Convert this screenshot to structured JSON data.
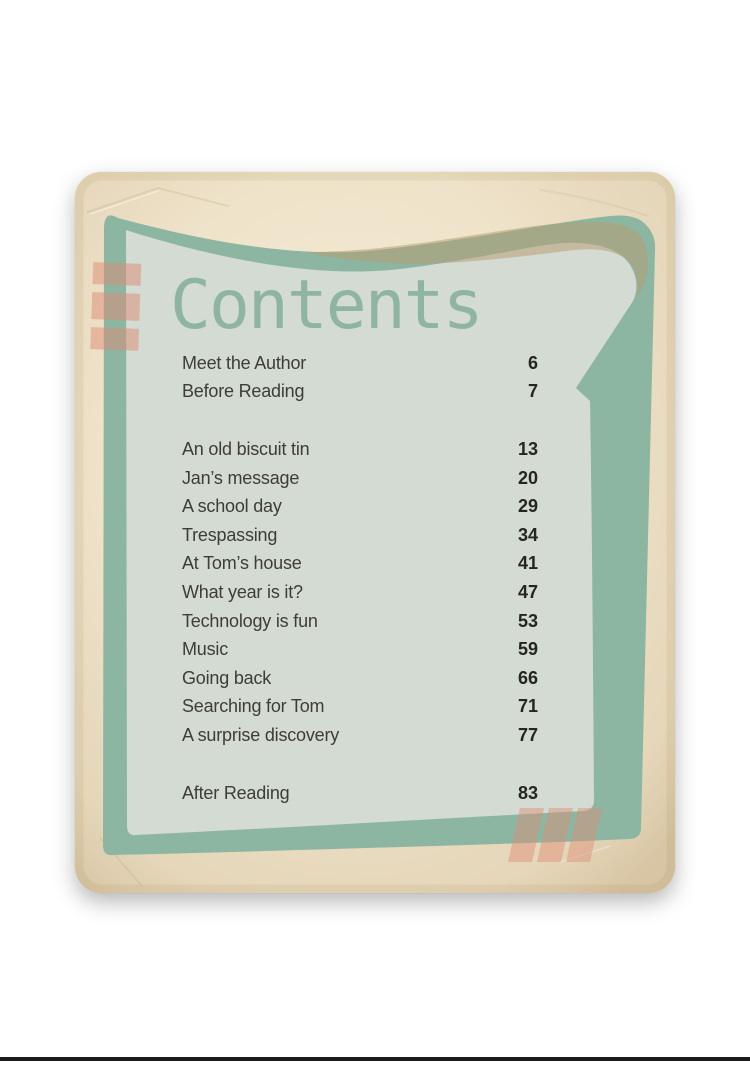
{
  "contents": {
    "title": "Contents",
    "groups": [
      {
        "entries": [
          {
            "label": "Meet the Author",
            "page": "6"
          },
          {
            "label": "Before Reading",
            "page": "7"
          }
        ]
      },
      {
        "entries": [
          {
            "label": "An old biscuit tin",
            "page": "13"
          },
          {
            "label": "Jan’s message",
            "page": "20"
          },
          {
            "label": "A school day",
            "page": "29"
          },
          {
            "label": "Trespassing",
            "page": "34"
          },
          {
            "label": "At Tom’s house",
            "page": "41"
          },
          {
            "label": "What year is it?",
            "page": "47"
          },
          {
            "label": "Technology is fun",
            "page": "53"
          },
          {
            "label": "Music",
            "page": "59"
          },
          {
            "label": "Going back",
            "page": "66"
          },
          {
            "label": "Searching for Tom",
            "page": "71"
          },
          {
            "label": "A surprise discovery",
            "page": "77"
          }
        ]
      },
      {
        "entries": [
          {
            "label": "After Reading",
            "page": "83"
          }
        ]
      }
    ]
  },
  "colors": {
    "paper_cream": "#ecdfc5",
    "panel_border_green": "#8cb6a2",
    "panel_light_green": "#d3dbd2",
    "title_green": "#8fb49f",
    "accent_salmon": "#de8b73",
    "accent_tan": "#b9a58c",
    "entry_text": "#3e3d36",
    "page_number_text": "#26251f",
    "page_edge_line": "#1b1b1b"
  }
}
